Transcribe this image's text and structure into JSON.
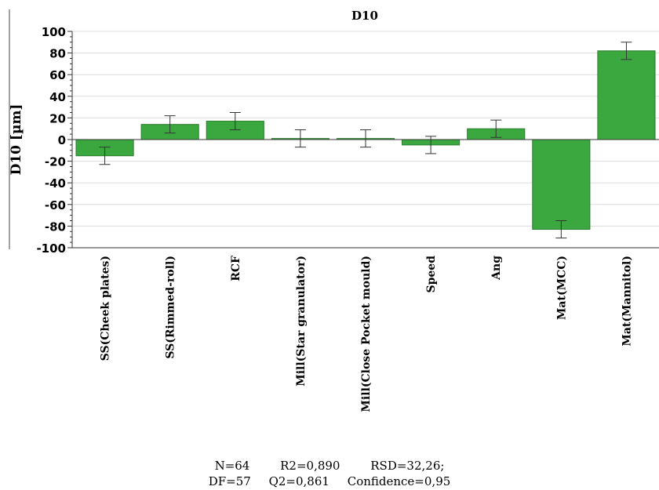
{
  "chart_data": {
    "type": "bar",
    "title": "D10",
    "ylabel": "D10 [µm]",
    "xlabel": "",
    "ylim": [
      -100,
      100
    ],
    "yticks": [
      -100,
      -80,
      -60,
      -40,
      -20,
      0,
      20,
      40,
      60,
      80,
      100
    ],
    "grid": true,
    "legend": "none",
    "bar_color": "#3aa83e",
    "bar_edge_color": "#2c7d2f",
    "categories": [
      "SS(Cheek plates)",
      "SS(Rimmed-roll)",
      "RCF",
      "Mill(Star granulator)",
      "Mill(Close Pocket mould)",
      "Speed",
      "Ang",
      "Mat(MCC)",
      "Mat(Mannitol)"
    ],
    "values": [
      -15,
      14,
      17,
      1,
      1,
      -5,
      10,
      -83,
      82
    ],
    "error": [
      8,
      8,
      8,
      8,
      8,
      8,
      8,
      8,
      8
    ]
  },
  "stats": {
    "line1": [
      "N=64",
      "R2=0,890",
      "RSD=32,26;"
    ],
    "line2": [
      "DF=57",
      "Q2=0,861",
      "Confidence=0,95"
    ]
  }
}
